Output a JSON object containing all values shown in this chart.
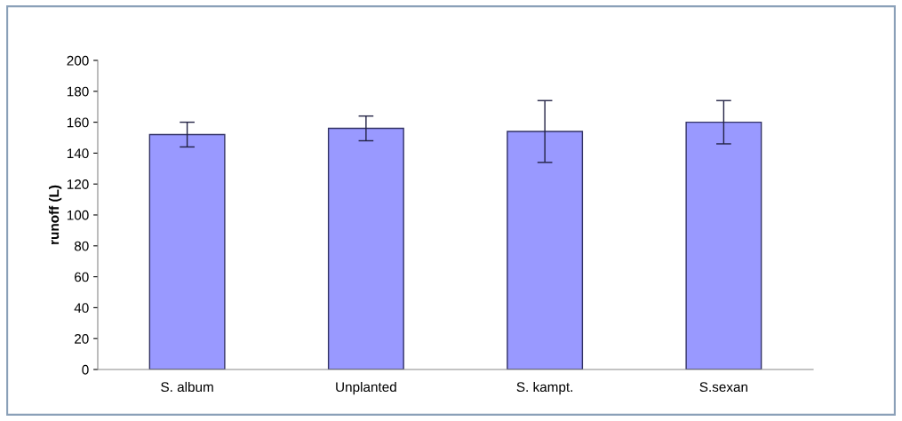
{
  "chart_data": {
    "type": "bar",
    "ylabel": "runoff (L)",
    "categories": [
      "S. album",
      "Unplanted",
      "S. kampt.",
      "S.sexan"
    ],
    "values": [
      152,
      156,
      154,
      160
    ],
    "errors": [
      8,
      8,
      20,
      14
    ],
    "color": "#9999ff",
    "ylim": [
      0,
      200
    ],
    "yticks": [
      0,
      20,
      40,
      60,
      80,
      100,
      120,
      140,
      160,
      180,
      200
    ],
    "grid": false,
    "legend": false
  }
}
